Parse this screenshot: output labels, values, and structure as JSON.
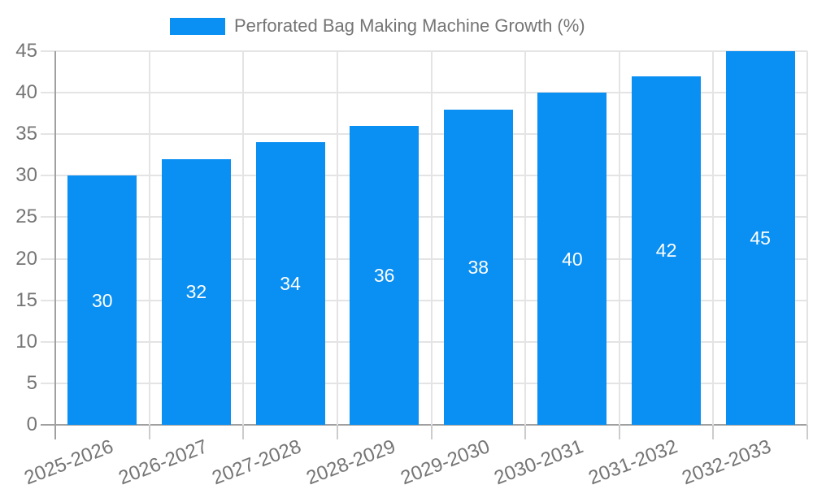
{
  "legend": {
    "label": "Perforated Bag Making Machine Growth (%)",
    "position": "top"
  },
  "chart_data": {
    "type": "bar",
    "title": "Perforated Bag Making Machine Growth (%)",
    "categories": [
      "2025-2026",
      "2026-2027",
      "2027-2028",
      "2028-2029",
      "2029-2030",
      "2030-2031",
      "2031-2032",
      "2032-2033"
    ],
    "values": [
      30,
      32,
      34,
      36,
      38,
      40,
      42,
      45
    ],
    "series": [
      {
        "name": "Perforated Bag Making Machine Growth (%)",
        "values": [
          30,
          32,
          34,
          36,
          38,
          40,
          42,
          45
        ]
      }
    ],
    "xlabel": "",
    "ylabel": "",
    "ylim": [
      0,
      45
    ],
    "yticks": [
      0,
      5,
      10,
      15,
      20,
      25,
      30,
      35,
      40,
      45
    ],
    "grid": true,
    "legend_position": "top-center",
    "value_labels_inside_bars": true
  },
  "style": {
    "bar_color": "#0a8ff2",
    "grid_color": "#e4e4e4",
    "axis_color": "#a0a0a0",
    "tick_color": "#cccccc",
    "label_color": "#757575",
    "bar_label_color": "#ffffff",
    "background": "#ffffff"
  }
}
